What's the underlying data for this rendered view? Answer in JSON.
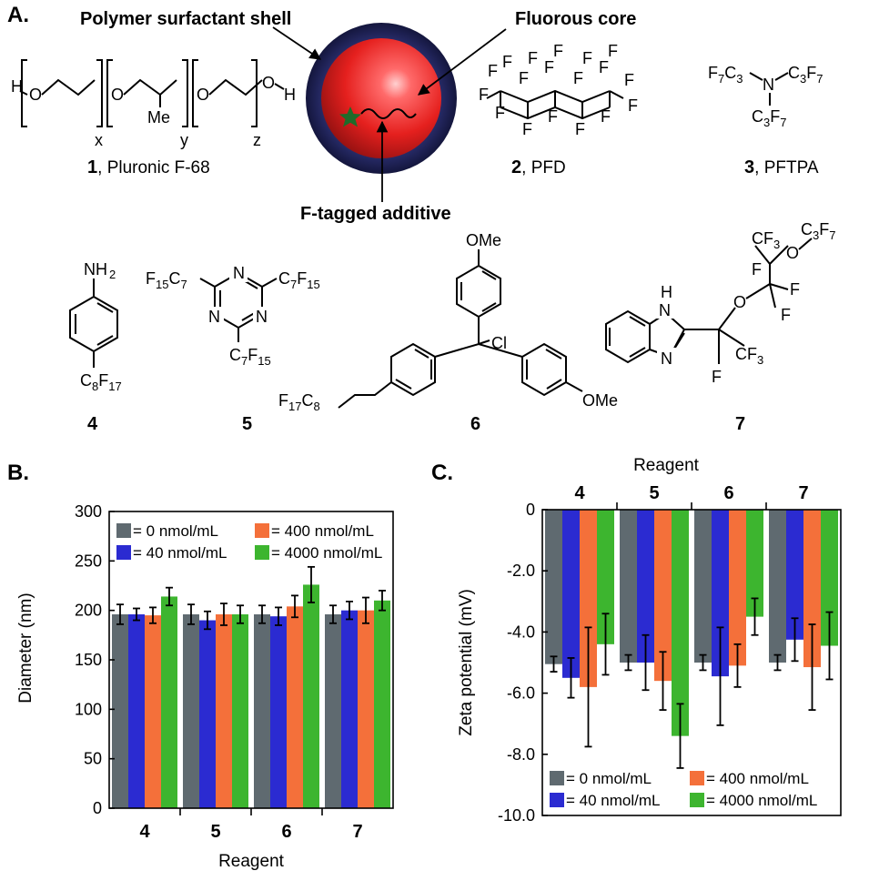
{
  "panel_a": {
    "letter": "A.",
    "callouts": {
      "shell": "Polymer surfactant shell",
      "core": "Fluorous core",
      "additive": "F-tagged additive"
    },
    "compounds": [
      {
        "number": "1",
        "name": "Pluronic F-68"
      },
      {
        "number": "2",
        "name": "PFD"
      },
      {
        "number": "3",
        "name": "PFTPA"
      },
      {
        "number": "4",
        "name": ""
      },
      {
        "number": "5",
        "name": ""
      },
      {
        "number": "6",
        "name": ""
      },
      {
        "number": "7",
        "name": ""
      }
    ],
    "structure_labels": {
      "pluronic": {
        "h": "H",
        "o1": "O",
        "o2": "O",
        "o3": "O",
        "oh": "O",
        "h2": "H",
        "me": "Me",
        "x": "x",
        "y": "y",
        "z": "z"
      },
      "pfd_f": "F",
      "pftpa": {
        "n": "N",
        "c3f7": "C3F7",
        "f7c3": "F7C3"
      },
      "c4": {
        "nh2": "NH2",
        "tail": "C8F17"
      },
      "c5": {
        "n": "N",
        "c7f15": "C7F15",
        "f15c7": "F15C7"
      },
      "c6": {
        "ome": "OMe",
        "cl": "Cl",
        "f17c8": "F17C8"
      },
      "c7": {
        "nh": "N",
        "h": "H",
        "n": "N",
        "o": "O",
        "f": "F",
        "cf3": "CF3",
        "c3f7": "C3F7"
      }
    },
    "colors": {
      "shell": "#1f2254",
      "core": "#e5201e",
      "highlight": "#ff9a9a",
      "star": "#1f6b2a"
    }
  },
  "legend_labels": [
    "= 0 nmol/mL",
    "= 40 nmol/mL",
    "= 400 nmol/mL",
    "= 4000 nmol/mL"
  ],
  "series_colors": [
    "#5f6a70",
    "#2b2bd1",
    "#f4703a",
    "#3db52f"
  ],
  "chart_data": [
    {
      "panel": "B.",
      "type": "bar",
      "ylabel": "Diameter (nm)",
      "xlabel": "Reagent",
      "categories": [
        "4",
        "5",
        "6",
        "7"
      ],
      "ylim": [
        0,
        300
      ],
      "yticks": [
        0,
        50,
        100,
        150,
        200,
        250,
        300
      ],
      "grid": false,
      "legend_position": "top",
      "series": [
        {
          "name": "0 nmol/mL",
          "values": [
            196,
            196,
            196,
            196
          ],
          "errors": [
            10,
            10,
            9,
            9
          ]
        },
        {
          "name": "40 nmol/mL",
          "values": [
            196,
            190,
            194,
            200
          ],
          "errors": [
            6,
            9,
            9,
            9
          ]
        },
        {
          "name": "400 nmol/mL",
          "values": [
            195,
            196,
            204,
            200
          ],
          "errors": [
            8,
            11,
            11,
            13
          ]
        },
        {
          "name": "4000 nmol/mL",
          "values": [
            214,
            196,
            226,
            210
          ],
          "errors": [
            9,
            9,
            18,
            10
          ]
        }
      ]
    },
    {
      "panel": "C.",
      "type": "bar",
      "ylabel": "Zeta potential (mV)",
      "xlabel": "Reagent",
      "categories": [
        "4",
        "5",
        "6",
        "7"
      ],
      "ylim": [
        -10,
        0
      ],
      "yticks": [
        0,
        -2,
        -4,
        -6,
        -8,
        -10
      ],
      "ytick_labels": [
        "0",
        "-2.0",
        "-4.0",
        "-6.0",
        "-8.0",
        "-10.0"
      ],
      "grid": false,
      "legend_position": "bottom",
      "series": [
        {
          "name": "0 nmol/mL",
          "values": [
            -5.05,
            -5.0,
            -5.0,
            -5.0
          ],
          "errors": [
            0.25,
            0.25,
            0.25,
            0.25
          ]
        },
        {
          "name": "40 nmol/mL",
          "values": [
            -5.5,
            -5.0,
            -5.45,
            -4.25
          ],
          "errors": [
            0.65,
            0.9,
            1.6,
            0.7
          ]
        },
        {
          "name": "400 nmol/mL",
          "values": [
            -5.8,
            -5.6,
            -5.1,
            -5.15
          ],
          "errors": [
            1.95,
            0.95,
            0.7,
            1.4
          ]
        },
        {
          "name": "4000 nmol/mL",
          "values": [
            -4.4,
            -7.4,
            -3.5,
            -4.45
          ],
          "errors": [
            1.0,
            1.05,
            0.6,
            1.1
          ]
        }
      ]
    }
  ]
}
